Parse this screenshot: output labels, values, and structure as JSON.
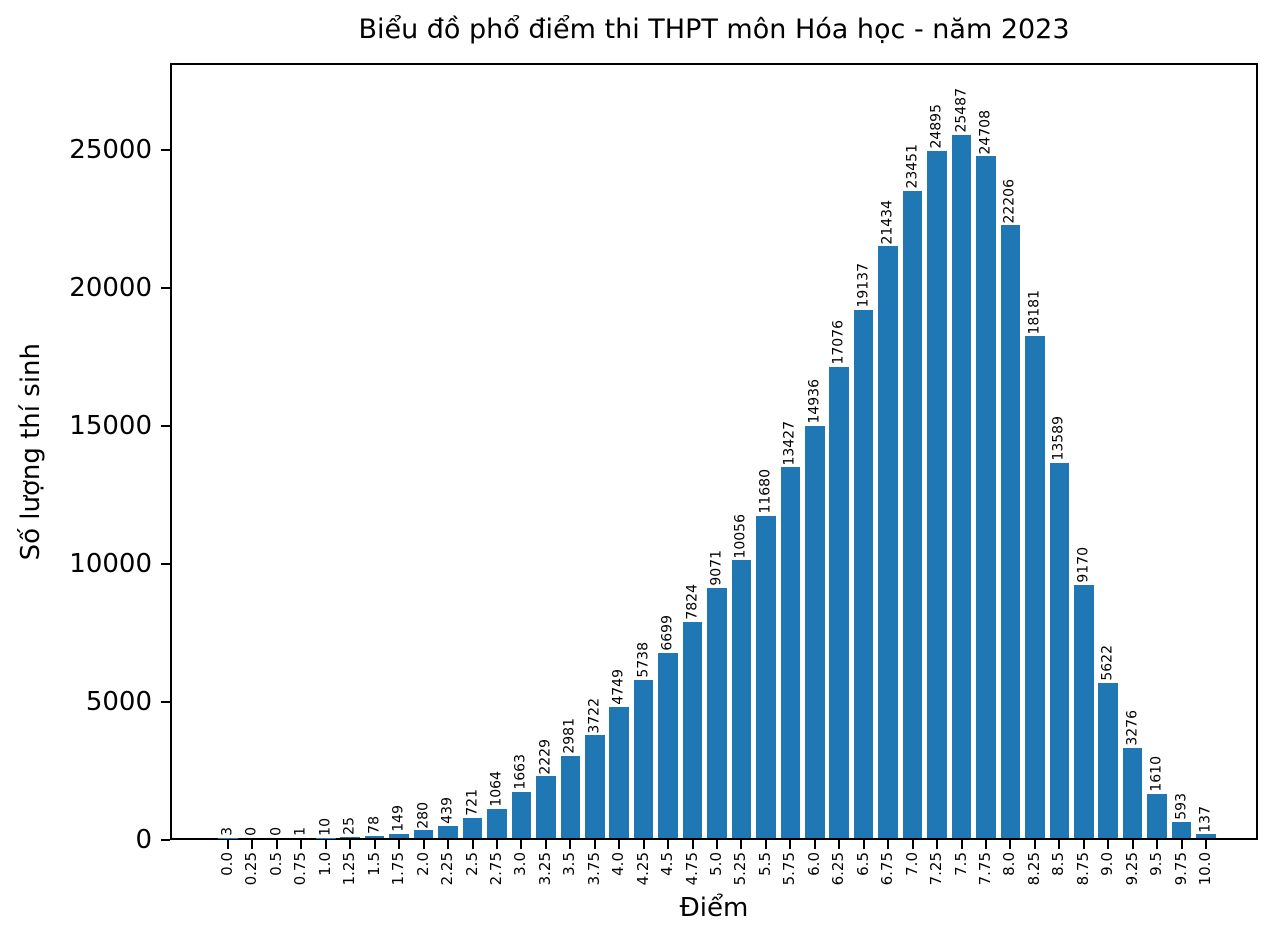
{
  "chart_data": {
    "type": "bar",
    "title": "Biểu đồ phổ điểm thi THPT môn Hóa học - năm 2023",
    "xlabel": "Điểm",
    "ylabel": "Số lượng thí sinh",
    "bar_color": "#1f77b4",
    "axis_color": "#000000",
    "grid": false,
    "legend": null,
    "ylim": [
      0,
      28150
    ],
    "yticks": [
      0,
      5000,
      10000,
      15000,
      20000,
      25000
    ],
    "ytick_labels": [
      "0",
      "5000",
      "10000",
      "15000",
      "20000",
      "25000"
    ],
    "categories": [
      "0.0",
      "0.25",
      "0.5",
      "0.75",
      "1.0",
      "1.25",
      "1.5",
      "1.75",
      "2.0",
      "2.25",
      "2.5",
      "2.75",
      "3.0",
      "3.25",
      "3.5",
      "3.75",
      "4.0",
      "4.25",
      "4.5",
      "4.75",
      "5.0",
      "5.25",
      "5.5",
      "5.75",
      "6.0",
      "6.25",
      "6.5",
      "6.75",
      "7.0",
      "7.25",
      "7.5",
      "7.75",
      "8.0",
      "8.25",
      "8.5",
      "8.75",
      "9.0",
      "9.25",
      "9.5",
      "9.75",
      "10.0"
    ],
    "values": [
      3,
      0,
      0,
      1,
      10,
      25,
      78,
      149,
      280,
      439,
      721,
      1064,
      1663,
      2229,
      2981,
      3722,
      4749,
      5738,
      6699,
      7824,
      9071,
      10056,
      11680,
      13427,
      14936,
      17076,
      19137,
      21434,
      23451,
      24895,
      25487,
      24708,
      22206,
      18181,
      13589,
      9170,
      5622,
      3276,
      1610,
      593,
      137
    ],
    "value_labels": [
      "3",
      "0",
      "0",
      "1",
      "10",
      "25",
      "78",
      "149",
      "280",
      "439",
      "721",
      "1064",
      "1663",
      "2229",
      "2981",
      "3722",
      "4749",
      "5738",
      "6699",
      "7824",
      "9071",
      "10056",
      "11680",
      "13427",
      "14936",
      "17076",
      "19137",
      "21434",
      "23451",
      "24895",
      "25487",
      "24708",
      "22206",
      "18181",
      "13589",
      "9170",
      "5622",
      "3276",
      "1610",
      "593",
      "137"
    ]
  }
}
